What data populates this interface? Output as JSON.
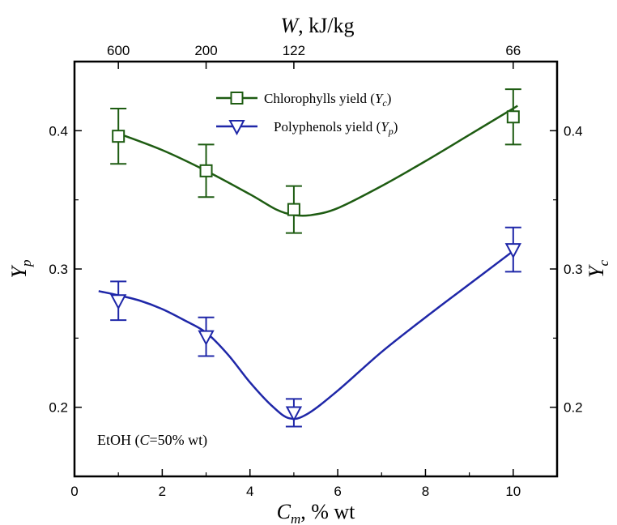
{
  "chart_data": {
    "type": "line",
    "x_axis": {
      "label_var": "C",
      "label_sub": "m",
      "label_unit": ", % wt",
      "range": [
        0,
        11
      ],
      "ticks": [
        0,
        2,
        4,
        6,
        8,
        10
      ]
    },
    "top_axis": {
      "label_var": "W",
      "label_unit": ", kJ/kg",
      "ticks": [
        {
          "x": 1,
          "label": "600"
        },
        {
          "x": 3,
          "label": "200"
        },
        {
          "x": 5,
          "label": "122"
        },
        {
          "x": 10,
          "label": "66"
        }
      ]
    },
    "y_axis_left": {
      "label_var": "Y",
      "label_sub": "p",
      "range": [
        0.15,
        0.45
      ],
      "ticks": [
        0.2,
        0.3,
        0.4
      ],
      "tick_labels": [
        "0.2",
        "0.3",
        "0.4"
      ]
    },
    "y_axis_right": {
      "label_var": "Y",
      "label_sub": "c",
      "range": [
        0.15,
        0.45
      ],
      "ticks": [
        0.2,
        0.3,
        0.4
      ],
      "tick_labels": [
        "0.2",
        "0.3",
        "0.4"
      ]
    },
    "series": [
      {
        "name": "Chlorophylls yield",
        "legend_sym": "Y",
        "legend_sub": "c",
        "color": "#1e5c12",
        "marker": "square",
        "points": [
          {
            "x": 1,
            "y": 0.396,
            "err": 0.02
          },
          {
            "x": 3,
            "y": 0.371,
            "err": 0.019
          },
          {
            "x": 5,
            "y": 0.343,
            "err": 0.017
          },
          {
            "x": 10,
            "y": 0.41,
            "err": 0.02
          }
        ],
        "fit": [
          [
            1.0,
            0.398
          ],
          [
            2.0,
            0.386
          ],
          [
            3.0,
            0.371
          ],
          [
            4.0,
            0.354
          ],
          [
            4.6,
            0.343
          ],
          [
            5.0,
            0.339
          ],
          [
            5.4,
            0.339
          ],
          [
            6.0,
            0.344
          ],
          [
            7.0,
            0.36
          ],
          [
            8.0,
            0.378
          ],
          [
            9.0,
            0.397
          ],
          [
            10.1,
            0.418
          ]
        ]
      },
      {
        "name": "Polyphenols yield",
        "legend_sym": "Y",
        "legend_sub": "p",
        "color": "#1f27a8",
        "marker": "triangle-down",
        "points": [
          {
            "x": 1,
            "y": 0.277,
            "err": 0.014
          },
          {
            "x": 3,
            "y": 0.251,
            "err": 0.014
          },
          {
            "x": 5,
            "y": 0.196,
            "err": 0.01
          },
          {
            "x": 10,
            "y": 0.314,
            "err": 0.016
          }
        ],
        "fit": [
          [
            0.55,
            0.284
          ],
          [
            1.0,
            0.281
          ],
          [
            1.5,
            0.277
          ],
          [
            2.0,
            0.271
          ],
          [
            2.5,
            0.263
          ],
          [
            3.0,
            0.254
          ],
          [
            3.5,
            0.238
          ],
          [
            4.0,
            0.218
          ],
          [
            4.5,
            0.201
          ],
          [
            4.9,
            0.192
          ],
          [
            5.3,
            0.195
          ],
          [
            6.0,
            0.212
          ],
          [
            7.0,
            0.24
          ],
          [
            8.0,
            0.265
          ],
          [
            9.0,
            0.289
          ],
          [
            10.0,
            0.313
          ]
        ]
      }
    ],
    "annotation": {
      "prefix": "EtOH (",
      "var": "C",
      "suffix": "=50% wt)"
    },
    "legend_placement": "top-center",
    "grid": false
  }
}
